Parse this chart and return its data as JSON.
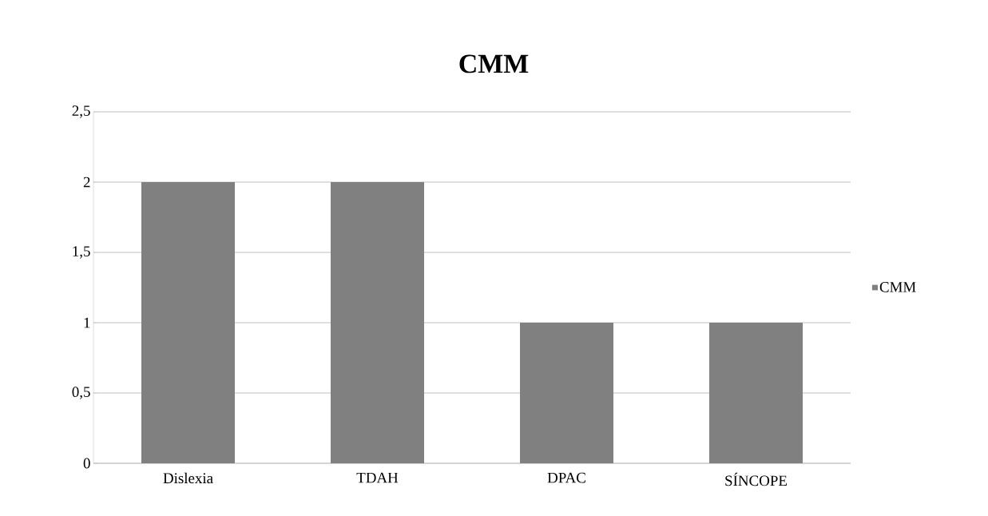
{
  "chart_data": {
    "type": "bar",
    "title": "CMM",
    "categories": [
      "Dislexia",
      "TDAH",
      "DPAC",
      "SÍNCOPE"
    ],
    "series": [
      {
        "name": "CMM",
        "color": "#808080",
        "values": [
          2,
          2,
          1,
          1
        ]
      }
    ],
    "ylim": [
      0,
      2.5
    ],
    "yticks": [
      0,
      {
        "value": 0.5,
        "label": "0,5"
      },
      1,
      {
        "value": 1.5,
        "label": "1,5"
      },
      2,
      {
        "value": 2.5,
        "label": "2,5"
      }
    ],
    "grid": "y",
    "legend": "right"
  }
}
